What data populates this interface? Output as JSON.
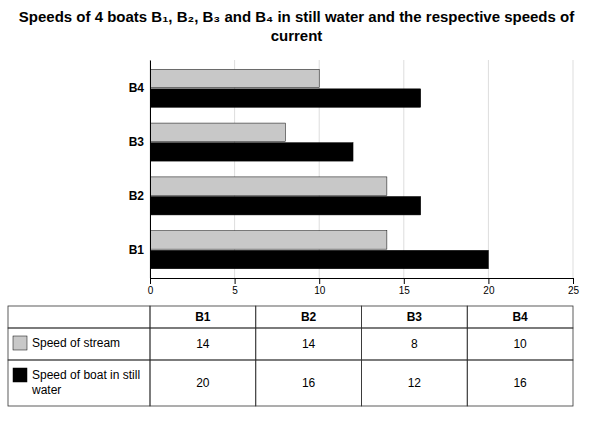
{
  "chart_data": {
    "type": "bar",
    "orientation": "horizontal",
    "title": "Speeds of 4 boats B₁, B₂, B₃ and B₄ in still water and the respective speeds of current",
    "categories": [
      "B1",
      "B2",
      "B3",
      "B4"
    ],
    "series": [
      {
        "name": "Speed of stream",
        "color": "#c8c8c8",
        "values": [
          14,
          14,
          8,
          10
        ]
      },
      {
        "name": "Speed of boat in still water",
        "color": "#000000",
        "values": [
          20,
          16,
          12,
          16
        ]
      }
    ],
    "xlim": [
      0,
      25
    ],
    "xticks": [
      0,
      5,
      10,
      15,
      20,
      25
    ],
    "grid": true,
    "legend": "bottom"
  }
}
